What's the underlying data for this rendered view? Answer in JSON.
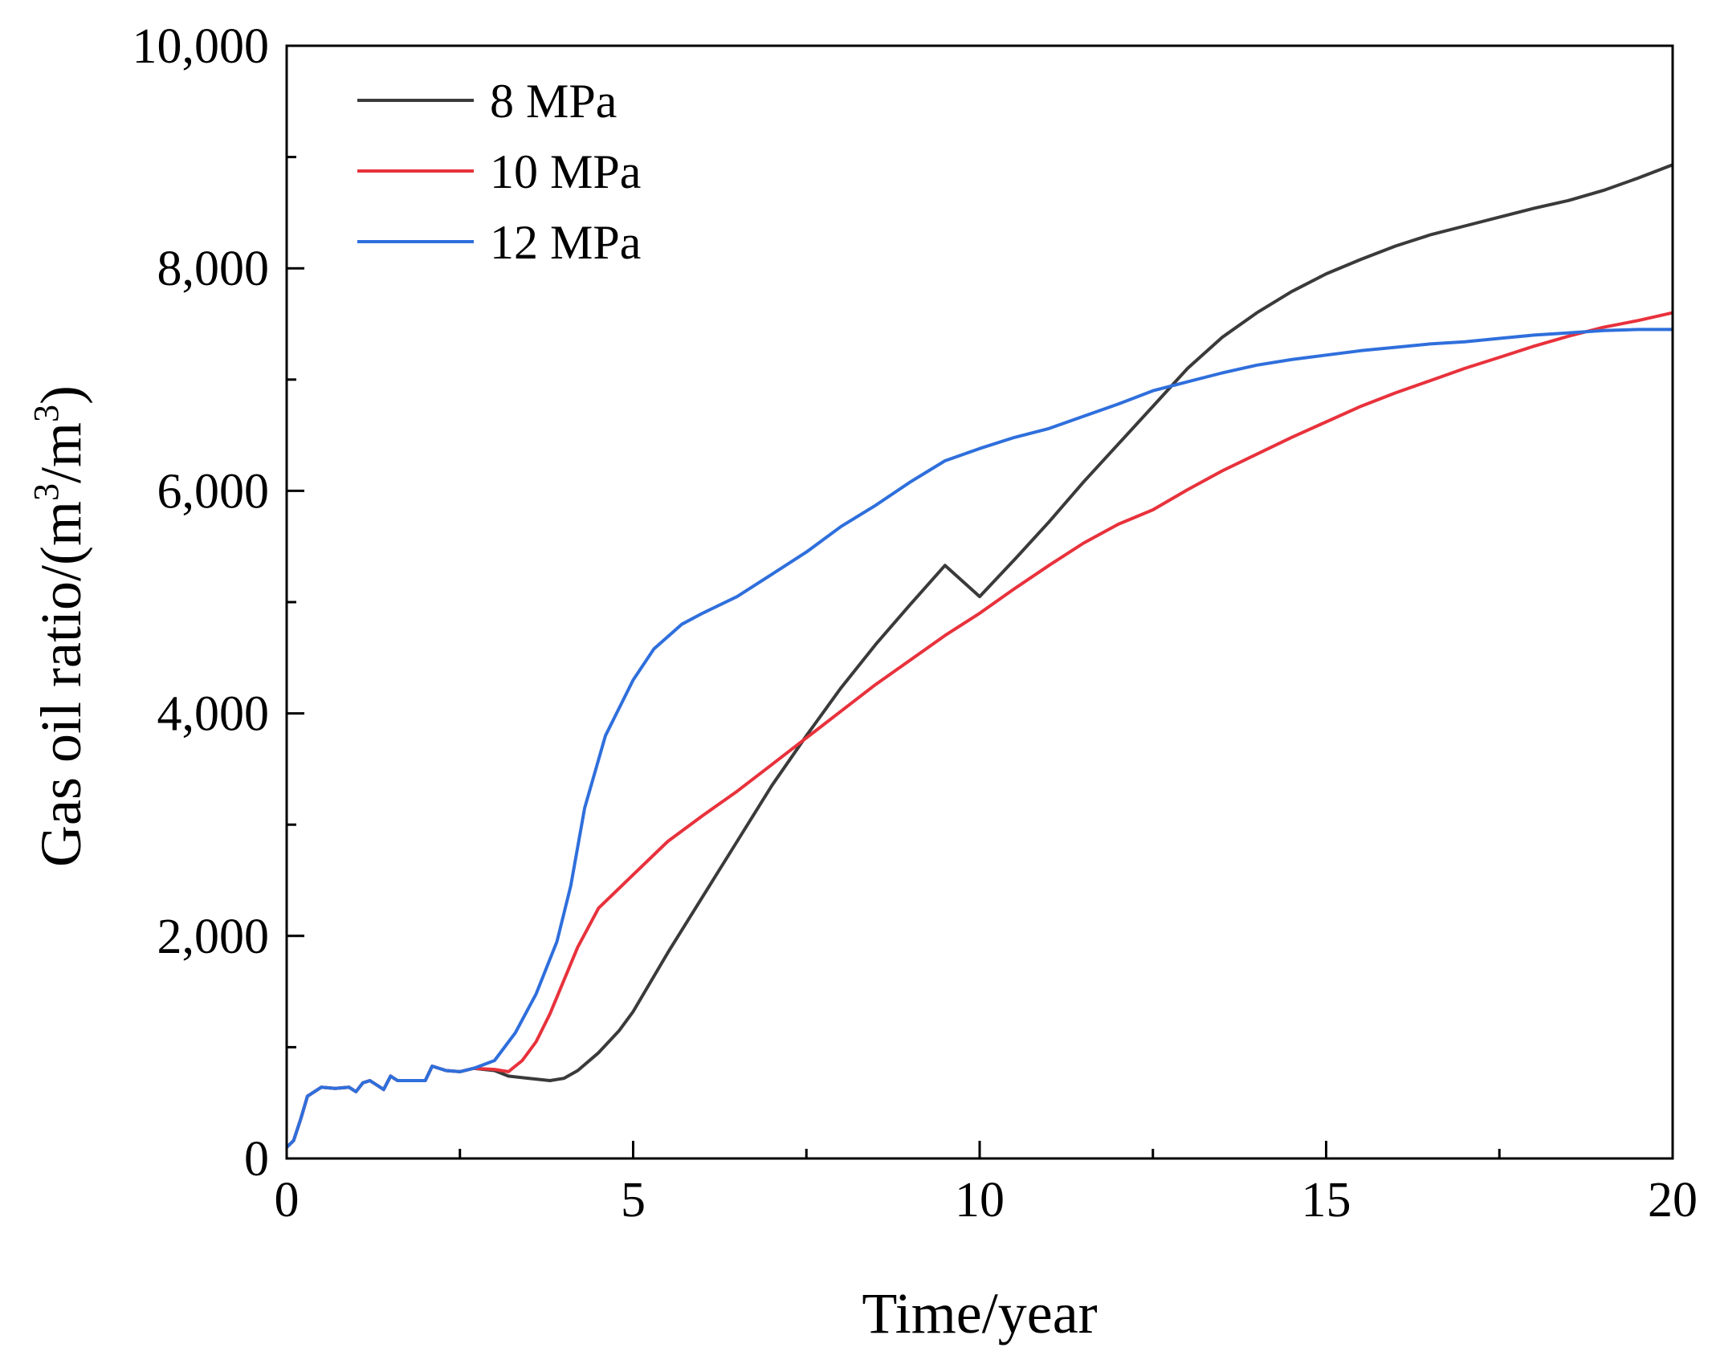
{
  "chart_data": {
    "type": "line",
    "title": "",
    "xlabel": "Time/year",
    "ylabel_main": "Gas oil ratio/(m",
    "ylabel_sup1": "3",
    "ylabel_mid": "/m",
    "ylabel_sup2": "3",
    "ylabel_end": ")",
    "xlim": [
      0,
      20
    ],
    "ylim": [
      0,
      10000
    ],
    "xticks": [
      0,
      5,
      10,
      15,
      20
    ],
    "xtick_labels": [
      "0",
      "5",
      "10",
      "15",
      "20"
    ],
    "yticks": [
      0,
      2000,
      4000,
      6000,
      8000,
      10000
    ],
    "ytick_labels": [
      "0",
      "2,000",
      "4,000",
      "6,000",
      "8,000",
      "10,000"
    ],
    "legend_position": "top-left",
    "series": [
      {
        "name": "8 MPa",
        "color": "#3a3a3a",
        "points": [
          [
            0,
            100
          ],
          [
            0.1,
            160
          ],
          [
            0.2,
            350
          ],
          [
            0.3,
            560
          ],
          [
            0.5,
            640
          ],
          [
            0.7,
            630
          ],
          [
            0.9,
            640
          ],
          [
            1.0,
            600
          ],
          [
            1.1,
            680
          ],
          [
            1.2,
            700
          ],
          [
            1.3,
            660
          ],
          [
            1.4,
            620
          ],
          [
            1.5,
            740
          ],
          [
            1.6,
            700
          ],
          [
            1.8,
            700
          ],
          [
            2.0,
            700
          ],
          [
            2.1,
            830
          ],
          [
            2.3,
            790
          ],
          [
            2.5,
            780
          ],
          [
            2.7,
            810
          ],
          [
            3.0,
            790
          ],
          [
            3.2,
            740
          ],
          [
            3.5,
            720
          ],
          [
            3.8,
            700
          ],
          [
            4.0,
            720
          ],
          [
            4.2,
            790
          ],
          [
            4.5,
            950
          ],
          [
            4.8,
            1150
          ],
          [
            5.0,
            1320
          ],
          [
            5.5,
            1850
          ],
          [
            6.0,
            2350
          ],
          [
            6.5,
            2850
          ],
          [
            7.0,
            3350
          ],
          [
            7.5,
            3800
          ],
          [
            8.0,
            4230
          ],
          [
            8.5,
            4620
          ],
          [
            9.0,
            4980
          ],
          [
            9.5,
            5330
          ],
          [
            10.0,
            5050
          ],
          [
            10.5,
            5380
          ],
          [
            11.0,
            5720
          ],
          [
            11.5,
            6080
          ],
          [
            12.0,
            6420
          ],
          [
            12.5,
            6760
          ],
          [
            13.0,
            7100
          ],
          [
            13.5,
            7380
          ],
          [
            14.0,
            7600
          ],
          [
            14.5,
            7790
          ],
          [
            15.0,
            7950
          ],
          [
            15.5,
            8080
          ],
          [
            16.0,
            8200
          ],
          [
            16.5,
            8300
          ],
          [
            17.0,
            8380
          ],
          [
            17.5,
            8460
          ],
          [
            18.0,
            8540
          ],
          [
            18.5,
            8610
          ],
          [
            19.0,
            8700
          ],
          [
            19.5,
            8810
          ],
          [
            20.0,
            8930
          ]
        ]
      },
      {
        "name": "10 MPa",
        "color": "#e8323c",
        "points": [
          [
            0,
            100
          ],
          [
            0.1,
            160
          ],
          [
            0.2,
            350
          ],
          [
            0.3,
            560
          ],
          [
            0.5,
            640
          ],
          [
            0.7,
            630
          ],
          [
            0.9,
            640
          ],
          [
            1.0,
            600
          ],
          [
            1.1,
            680
          ],
          [
            1.2,
            700
          ],
          [
            1.3,
            660
          ],
          [
            1.4,
            620
          ],
          [
            1.5,
            740
          ],
          [
            1.6,
            700
          ],
          [
            1.8,
            700
          ],
          [
            2.0,
            700
          ],
          [
            2.1,
            830
          ],
          [
            2.3,
            790
          ],
          [
            2.5,
            780
          ],
          [
            2.7,
            810
          ],
          [
            3.0,
            800
          ],
          [
            3.2,
            780
          ],
          [
            3.4,
            880
          ],
          [
            3.6,
            1050
          ],
          [
            3.8,
            1300
          ],
          [
            4.0,
            1600
          ],
          [
            4.2,
            1900
          ],
          [
            4.5,
            2250
          ],
          [
            5.0,
            2550
          ],
          [
            5.5,
            2850
          ],
          [
            6.0,
            3080
          ],
          [
            6.5,
            3300
          ],
          [
            7.0,
            3540
          ],
          [
            7.5,
            3780
          ],
          [
            8.0,
            4020
          ],
          [
            8.5,
            4260
          ],
          [
            9.0,
            4480
          ],
          [
            9.5,
            4700
          ],
          [
            10.0,
            4900
          ],
          [
            10.5,
            5120
          ],
          [
            11.0,
            5330
          ],
          [
            11.5,
            5530
          ],
          [
            12.0,
            5700
          ],
          [
            12.5,
            5830
          ],
          [
            13.0,
            6010
          ],
          [
            13.5,
            6180
          ],
          [
            14.0,
            6330
          ],
          [
            14.5,
            6480
          ],
          [
            15.0,
            6620
          ],
          [
            15.5,
            6760
          ],
          [
            16.0,
            6880
          ],
          [
            16.5,
            6990
          ],
          [
            17.0,
            7100
          ],
          [
            17.5,
            7200
          ],
          [
            18.0,
            7300
          ],
          [
            18.5,
            7390
          ],
          [
            19.0,
            7470
          ],
          [
            19.5,
            7530
          ],
          [
            20.0,
            7600
          ]
        ]
      },
      {
        "name": "12 MPa",
        "color": "#2f6fdc",
        "points": [
          [
            0,
            100
          ],
          [
            0.1,
            160
          ],
          [
            0.2,
            350
          ],
          [
            0.3,
            560
          ],
          [
            0.5,
            640
          ],
          [
            0.7,
            630
          ],
          [
            0.9,
            640
          ],
          [
            1.0,
            600
          ],
          [
            1.1,
            680
          ],
          [
            1.2,
            700
          ],
          [
            1.3,
            660
          ],
          [
            1.4,
            620
          ],
          [
            1.5,
            740
          ],
          [
            1.6,
            700
          ],
          [
            1.8,
            700
          ],
          [
            2.0,
            700
          ],
          [
            2.1,
            830
          ],
          [
            2.3,
            790
          ],
          [
            2.5,
            780
          ],
          [
            2.7,
            810
          ],
          [
            3.0,
            880
          ],
          [
            3.3,
            1130
          ],
          [
            3.6,
            1480
          ],
          [
            3.9,
            1950
          ],
          [
            4.1,
            2450
          ],
          [
            4.3,
            3150
          ],
          [
            4.6,
            3800
          ],
          [
            5.0,
            4300
          ],
          [
            5.3,
            4580
          ],
          [
            5.7,
            4800
          ],
          [
            6.0,
            4900
          ],
          [
            6.5,
            5050
          ],
          [
            7.0,
            5250
          ],
          [
            7.5,
            5450
          ],
          [
            8.0,
            5680
          ],
          [
            8.5,
            5870
          ],
          [
            9.0,
            6080
          ],
          [
            9.5,
            6270
          ],
          [
            10.0,
            6380
          ],
          [
            10.5,
            6480
          ],
          [
            11.0,
            6560
          ],
          [
            11.5,
            6670
          ],
          [
            12.0,
            6780
          ],
          [
            12.5,
            6900
          ],
          [
            13.0,
            6980
          ],
          [
            13.5,
            7060
          ],
          [
            14.0,
            7130
          ],
          [
            14.5,
            7180
          ],
          [
            15.0,
            7220
          ],
          [
            15.5,
            7260
          ],
          [
            16.0,
            7290
          ],
          [
            16.5,
            7320
          ],
          [
            17.0,
            7340
          ],
          [
            17.5,
            7370
          ],
          [
            18.0,
            7400
          ],
          [
            18.5,
            7420
          ],
          [
            19.0,
            7440
          ],
          [
            19.5,
            7450
          ],
          [
            20.0,
            7450
          ]
        ]
      }
    ]
  }
}
